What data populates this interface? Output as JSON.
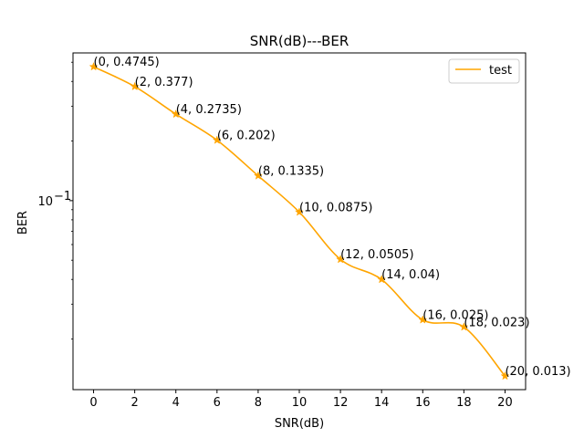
{
  "chart_data": {
    "type": "line",
    "title": "SNR(dB)---BER",
    "xlabel": "SNR(dB)",
    "ylabel": "BER",
    "yscale": "log",
    "xlim": [
      -1,
      21
    ],
    "ylim": [
      0.0111,
      0.5573
    ],
    "x_ticks": [
      0,
      2,
      4,
      6,
      8,
      10,
      12,
      14,
      16,
      18,
      20
    ],
    "x_tick_labels": [
      "0",
      "2",
      "4",
      "6",
      "8",
      "10",
      "12",
      "14",
      "16",
      "18",
      "20"
    ],
    "y_tick_label": "10",
    "y_tick_exp": "−1",
    "grid": false,
    "legend": "top-right",
    "series": [
      {
        "name": "test",
        "color": "#ffa500",
        "marker": "star",
        "smoothed": true,
        "x": [
          0,
          2,
          4,
          6,
          8,
          10,
          12,
          14,
          16,
          18,
          20
        ],
        "y": [
          0.4745,
          0.377,
          0.2735,
          0.202,
          0.1335,
          0.0875,
          0.0505,
          0.04,
          0.025,
          0.023,
          0.013
        ]
      }
    ],
    "annotations": [
      "(0, 0.4745)",
      "(2, 0.377)",
      "(4, 0.2735)",
      "(6, 0.202)",
      "(8, 0.1335)",
      "(10, 0.0875)",
      "(12, 0.0505)",
      "(14, 0.04)",
      "(16, 0.025)",
      "(18, 0.023)",
      "(20, 0.013)"
    ]
  }
}
